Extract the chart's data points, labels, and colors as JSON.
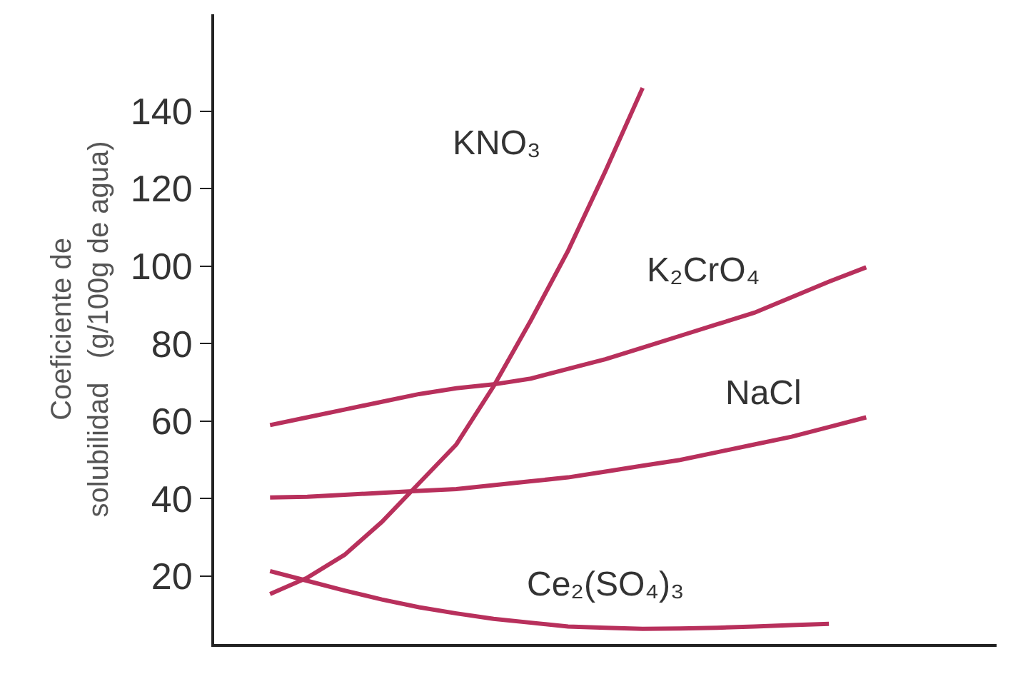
{
  "chart_data": {
    "type": "line",
    "ylabel": "Coeficiente de\nsolubilidad   (g/100g de agua)",
    "categories": [
      null,
      null,
      null,
      null,
      null,
      null,
      null,
      null,
      null,
      null,
      null,
      null,
      null,
      null,
      null,
      null,
      null
    ],
    "series": [
      {
        "name": "KNO₃",
        "color": "#b8305c",
        "values": [
          15.4,
          19.6,
          25.5,
          34,
          44,
          54,
          69,
          86,
          104,
          124.5,
          146,
          null,
          null,
          null,
          null,
          null,
          null
        ]
      },
      {
        "name": "K₂CrO₄",
        "color": "#b8305c",
        "values": [
          59,
          61,
          63,
          65,
          67,
          68.5,
          69.5,
          71,
          73.5,
          76,
          79,
          82,
          85,
          88,
          92,
          96,
          99.7
        ]
      },
      {
        "name": "NaCl",
        "color": "#b8305c",
        "values": [
          40.3,
          40.5,
          41,
          41.5,
          42,
          42.5,
          43.5,
          44.5,
          45.5,
          47,
          48.5,
          50,
          52,
          54,
          56,
          58.5,
          61
        ]
      },
      {
        "name": "Ce₂(SO₄)₃",
        "color": "#b8305c",
        "values": [
          21.3,
          18.8,
          16.3,
          14,
          12,
          10.4,
          9,
          8,
          7,
          6.7,
          6.4,
          6.5,
          6.7,
          7,
          7.4,
          7.7,
          null
        ]
      }
    ],
    "ylim": [
      2.5,
      165
    ],
    "yticks": [
      20,
      40,
      60,
      80,
      100,
      120,
      140
    ],
    "legend": false,
    "marker": "none",
    "line_style": "solid"
  }
}
